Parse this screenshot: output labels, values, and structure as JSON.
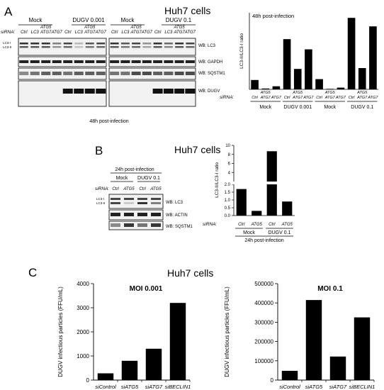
{
  "panel_a": {
    "letter": "A",
    "title": "Huh7 cells",
    "blot": {
      "group_headers": [
        "Mock",
        "DUGV 0.001",
        "Mock",
        "DUGV 0.1"
      ],
      "sirna_label": "siRNA:",
      "lanes_left": [
        "Ctrl",
        "LC3",
        "ATG5 ATG7",
        "ATG7",
        "Ctrl",
        "LC3",
        "ATG5 ATG7",
        "ATG7"
      ],
      "lanes_right": [
        "Ctrl",
        "LC3",
        "ATG5 ATG7",
        "ATG7",
        "Ctrl",
        "LC3",
        "ATG5 ATG7",
        "ATG7"
      ],
      "band_markers": [
        "LC3-I",
        "LC3-II"
      ],
      "row_labels": [
        "WB: LC3",
        "WB: GAPDH",
        "WB: SQSTM1",
        "WB: DUGV"
      ],
      "footer": "48h post-infection"
    }
  },
  "panel_b": {
    "letter": "B",
    "title": "Huh7 cells",
    "blot": {
      "header": "24h post-infection",
      "group_headers": [
        "Mock",
        "DUGV 0.1"
      ],
      "sirna_label": "siRNA:",
      "lanes": [
        "Ctrl",
        "ATG5",
        "Ctrl",
        "ATG5"
      ],
      "band_markers": [
        "LC3-I",
        "LC3-II"
      ],
      "row_labels": [
        "WB: LC3",
        "WB: ACTIN",
        "WB: SQSTM1"
      ]
    }
  },
  "panel_c": {
    "letter": "C",
    "title": "Huh7 cells"
  },
  "chart_data": [
    {
      "id": "a_ratio",
      "type": "bar",
      "title": "48h post-infection",
      "ylabel": "LC3-II/LC3-I ratio",
      "sirna_label": "siRNA:",
      "categories": [
        "Ctrl",
        "ATG5 ATG7",
        "ATG7",
        "Ctrl",
        "ATG5 ATG7",
        "ATG7",
        "Ctrl",
        "ATG5 ATG7",
        "ATG7",
        "Ctrl",
        "ATG5 ATG7",
        "ATG7"
      ],
      "values": [
        0.55,
        0.05,
        0.18,
        2.95,
        1.2,
        2.35,
        0.6,
        0.03,
        0.1,
        4.2,
        1.25,
        3.7
      ],
      "groups": [
        "Mock",
        "DUGV 0.001",
        "Mock",
        "DUGV 0.1"
      ],
      "ylim": [
        0,
        4.5
      ]
    },
    {
      "id": "b_ratio",
      "type": "bar",
      "ylabel": "LC3-II/LC3-I ratio",
      "sirna_label": "siRNA:",
      "categories": [
        "Ctrl",
        "ATG5",
        "Ctrl",
        "ATG5"
      ],
      "values": [
        1.7,
        0.3,
        8.7,
        0.9
      ],
      "groups": [
        "Mock",
        "DUGV 0.1"
      ],
      "footer": "24h post-infection",
      "yticks": [
        "0.0",
        "0.5",
        "1.0",
        "1.5",
        "2.0",
        "4",
        "6",
        "8",
        "10"
      ],
      "axis_break": "between 2.0 and 4"
    },
    {
      "id": "c_moi_0001",
      "type": "bar",
      "title": "MOI 0.001",
      "ylabel": "DUGV infectious particles (FFU/mL)",
      "categories": [
        "siControl",
        "siATG5",
        "siATG7",
        "siBECLIN1"
      ],
      "values": [
        280,
        800,
        1300,
        3200
      ],
      "ylim": [
        0,
        4000
      ],
      "yticks": [
        "0",
        "1000",
        "2000",
        "3000",
        "4000"
      ]
    },
    {
      "id": "c_moi_01",
      "type": "bar",
      "title": "MOI 0.1",
      "ylabel": "DUGV infectious particles (FFU/mL)",
      "categories": [
        "siControl",
        "siATG5",
        "siATG7",
        "siBECLIN1"
      ],
      "values": [
        48000,
        415000,
        122000,
        325000
      ],
      "ylim": [
        0,
        500000
      ],
      "yticks": [
        "0",
        "100000",
        "200000",
        "300000",
        "400000",
        "500000"
      ]
    }
  ]
}
